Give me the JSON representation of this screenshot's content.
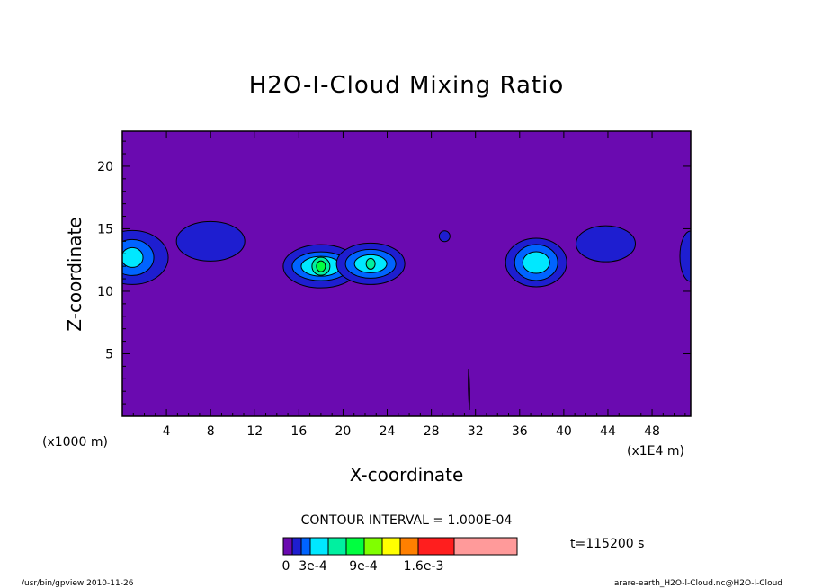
{
  "chart_data": {
    "type": "contour",
    "title": "H2O-I-Cloud Mixing Ratio",
    "xlabel": "X-coordinate",
    "ylabel": "Z-coordinate",
    "x_unit_left": "(x1000 m)",
    "x_unit_right": "(x1E4 m)",
    "xlim": [
      0,
      51.5
    ],
    "ylim": [
      0,
      22.8
    ],
    "x_ticks": [
      "4",
      "8",
      "12",
      "16",
      "20",
      "24",
      "28",
      "32",
      "36",
      "40",
      "44",
      "48"
    ],
    "y_ticks": [
      "5",
      "10",
      "15",
      "20"
    ],
    "contour_interval_text": "CONTOUR INTERVAL = 1.000E-04",
    "time_text": "t=115200 s",
    "colorbar_labels": [
      "0",
      "3e-4",
      "9e-4",
      "1.6e-3"
    ],
    "colorbar_colors": [
      "#6a0ab0",
      "#1e1ed0",
      "#0064ff",
      "#00e8ff",
      "#00f0a0",
      "#00ff40",
      "#80ff00",
      "#ffff00",
      "#ff8000",
      "#ff1e1e",
      "#ff9a9a"
    ],
    "background_color": "#6a0ab0",
    "cloud_features": [
      {
        "x": 0.9,
        "z": 12.7,
        "peak_level": 3
      },
      {
        "x": 8.0,
        "z": 14.0,
        "peak_level": 1
      },
      {
        "x": 18.0,
        "z": 12.0,
        "peak_level": 5
      },
      {
        "x": 22.5,
        "z": 12.2,
        "peak_level": 4
      },
      {
        "x": 29.2,
        "z": 14.4,
        "peak_level": 1
      },
      {
        "x": 37.5,
        "z": 12.3,
        "peak_level": 3
      },
      {
        "x": 43.8,
        "z": 13.8,
        "peak_level": 1
      },
      {
        "x": 51.5,
        "z": 12.8,
        "peak_level": 2
      }
    ]
  },
  "footer": {
    "left": "/usr/bin/gpview  2010-11-26",
    "right": "arare-earth_H2O-l-Cloud.nc@H2O-l-Cloud"
  }
}
